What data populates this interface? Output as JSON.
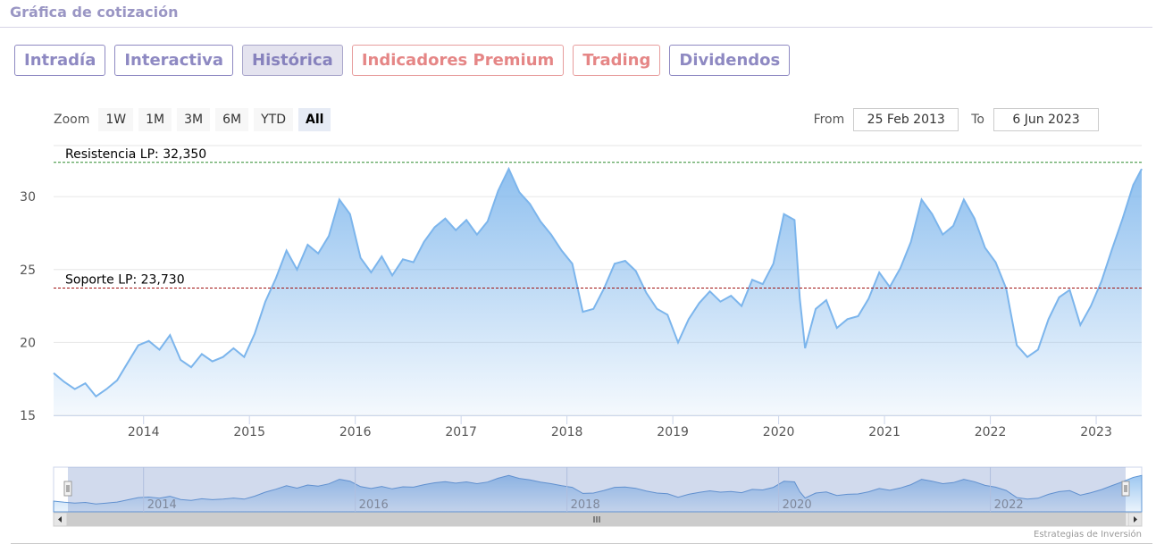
{
  "header": {
    "title": "Gráfica de cotización"
  },
  "tabs": [
    {
      "label": "Intradía",
      "state": "normal"
    },
    {
      "label": "Interactiva",
      "state": "normal"
    },
    {
      "label": "Histórica",
      "state": "active"
    },
    {
      "label": "Indicadores Premium",
      "state": "premium"
    },
    {
      "label": "Trading",
      "state": "premium"
    },
    {
      "label": "Dividendos",
      "state": "normal"
    }
  ],
  "zoom": {
    "label": "Zoom",
    "buttons": [
      "1W",
      "1M",
      "3M",
      "6M",
      "YTD",
      "All"
    ],
    "selected": "All"
  },
  "range": {
    "from_label": "From",
    "from_value": "25 Feb 2013",
    "to_label": "To",
    "to_value": "6 Jun 2023"
  },
  "credit": "Estrategias de Inversión",
  "colors": {
    "series": "#7cb5ec",
    "resistance": "#2e8b2e",
    "support": "#a01010",
    "accent": "#8e89c2"
  },
  "chart_data": {
    "type": "area",
    "x_start": 2013.15,
    "x_end": 2023.43,
    "ylim": [
      15,
      33.5
    ],
    "yticks": [
      15,
      20,
      25,
      30
    ],
    "xticks": [
      2014,
      2015,
      2016,
      2017,
      2018,
      2019,
      2020,
      2021,
      2022,
      2023
    ],
    "navigator_ticks": [
      2014,
      2016,
      2018,
      2020,
      2022
    ],
    "grid": true,
    "legend": "none",
    "lines": [
      {
        "label": "Resistencia LP: 32,350",
        "value": 32.35,
        "color": "#2e8b2e"
      },
      {
        "label": "Soporte LP: 23,730",
        "value": 23.73,
        "color": "#a01010"
      }
    ],
    "series": [
      {
        "values": [
          [
            2013.15,
            17.9
          ],
          [
            2013.25,
            17.3
          ],
          [
            2013.35,
            16.8
          ],
          [
            2013.45,
            17.2
          ],
          [
            2013.55,
            16.3
          ],
          [
            2013.65,
            16.8
          ],
          [
            2013.75,
            17.4
          ],
          [
            2013.85,
            18.6
          ],
          [
            2013.95,
            19.8
          ],
          [
            2014.05,
            20.1
          ],
          [
            2014.15,
            19.5
          ],
          [
            2014.25,
            20.5
          ],
          [
            2014.35,
            18.8
          ],
          [
            2014.45,
            18.3
          ],
          [
            2014.55,
            19.2
          ],
          [
            2014.65,
            18.7
          ],
          [
            2014.75,
            19.0
          ],
          [
            2014.85,
            19.6
          ],
          [
            2014.95,
            19.0
          ],
          [
            2015.05,
            20.6
          ],
          [
            2015.15,
            22.8
          ],
          [
            2015.25,
            24.4
          ],
          [
            2015.35,
            26.3
          ],
          [
            2015.45,
            25.0
          ],
          [
            2015.55,
            26.7
          ],
          [
            2015.65,
            26.1
          ],
          [
            2015.75,
            27.3
          ],
          [
            2015.85,
            29.8
          ],
          [
            2015.95,
            28.8
          ],
          [
            2016.05,
            25.8
          ],
          [
            2016.15,
            24.8
          ],
          [
            2016.25,
            25.9
          ],
          [
            2016.35,
            24.6
          ],
          [
            2016.45,
            25.7
          ],
          [
            2016.55,
            25.5
          ],
          [
            2016.65,
            26.9
          ],
          [
            2016.75,
            27.9
          ],
          [
            2016.85,
            28.5
          ],
          [
            2016.95,
            27.7
          ],
          [
            2017.05,
            28.4
          ],
          [
            2017.15,
            27.4
          ],
          [
            2017.25,
            28.3
          ],
          [
            2017.35,
            30.4
          ],
          [
            2017.45,
            31.9
          ],
          [
            2017.55,
            30.3
          ],
          [
            2017.65,
            29.5
          ],
          [
            2017.75,
            28.3
          ],
          [
            2017.85,
            27.4
          ],
          [
            2017.95,
            26.3
          ],
          [
            2018.05,
            25.4
          ],
          [
            2018.15,
            22.1
          ],
          [
            2018.25,
            22.3
          ],
          [
            2018.35,
            23.7
          ],
          [
            2018.45,
            25.4
          ],
          [
            2018.55,
            25.6
          ],
          [
            2018.65,
            24.9
          ],
          [
            2018.75,
            23.4
          ],
          [
            2018.85,
            22.3
          ],
          [
            2018.95,
            21.9
          ],
          [
            2019.05,
            20.0
          ],
          [
            2019.15,
            21.6
          ],
          [
            2019.25,
            22.7
          ],
          [
            2019.35,
            23.5
          ],
          [
            2019.45,
            22.8
          ],
          [
            2019.55,
            23.2
          ],
          [
            2019.65,
            22.5
          ],
          [
            2019.75,
            24.3
          ],
          [
            2019.85,
            24.0
          ],
          [
            2019.95,
            25.4
          ],
          [
            2020.05,
            28.8
          ],
          [
            2020.15,
            28.4
          ],
          [
            2020.2,
            23.0
          ],
          [
            2020.25,
            19.6
          ],
          [
            2020.35,
            22.3
          ],
          [
            2020.45,
            22.9
          ],
          [
            2020.55,
            21.0
          ],
          [
            2020.65,
            21.6
          ],
          [
            2020.75,
            21.8
          ],
          [
            2020.85,
            23.0
          ],
          [
            2020.95,
            24.8
          ],
          [
            2021.05,
            23.8
          ],
          [
            2021.15,
            25.1
          ],
          [
            2021.25,
            26.9
          ],
          [
            2021.35,
            29.8
          ],
          [
            2021.45,
            28.8
          ],
          [
            2021.55,
            27.4
          ],
          [
            2021.65,
            28.0
          ],
          [
            2021.75,
            29.8
          ],
          [
            2021.85,
            28.5
          ],
          [
            2021.95,
            26.5
          ],
          [
            2022.05,
            25.5
          ],
          [
            2022.15,
            23.7
          ],
          [
            2022.25,
            19.8
          ],
          [
            2022.35,
            19.0
          ],
          [
            2022.45,
            19.5
          ],
          [
            2022.55,
            21.6
          ],
          [
            2022.65,
            23.1
          ],
          [
            2022.75,
            23.6
          ],
          [
            2022.85,
            21.2
          ],
          [
            2022.95,
            22.5
          ],
          [
            2023.05,
            24.2
          ],
          [
            2023.15,
            26.4
          ],
          [
            2023.25,
            28.5
          ],
          [
            2023.35,
            30.8
          ],
          [
            2023.43,
            31.9
          ]
        ]
      }
    ]
  }
}
